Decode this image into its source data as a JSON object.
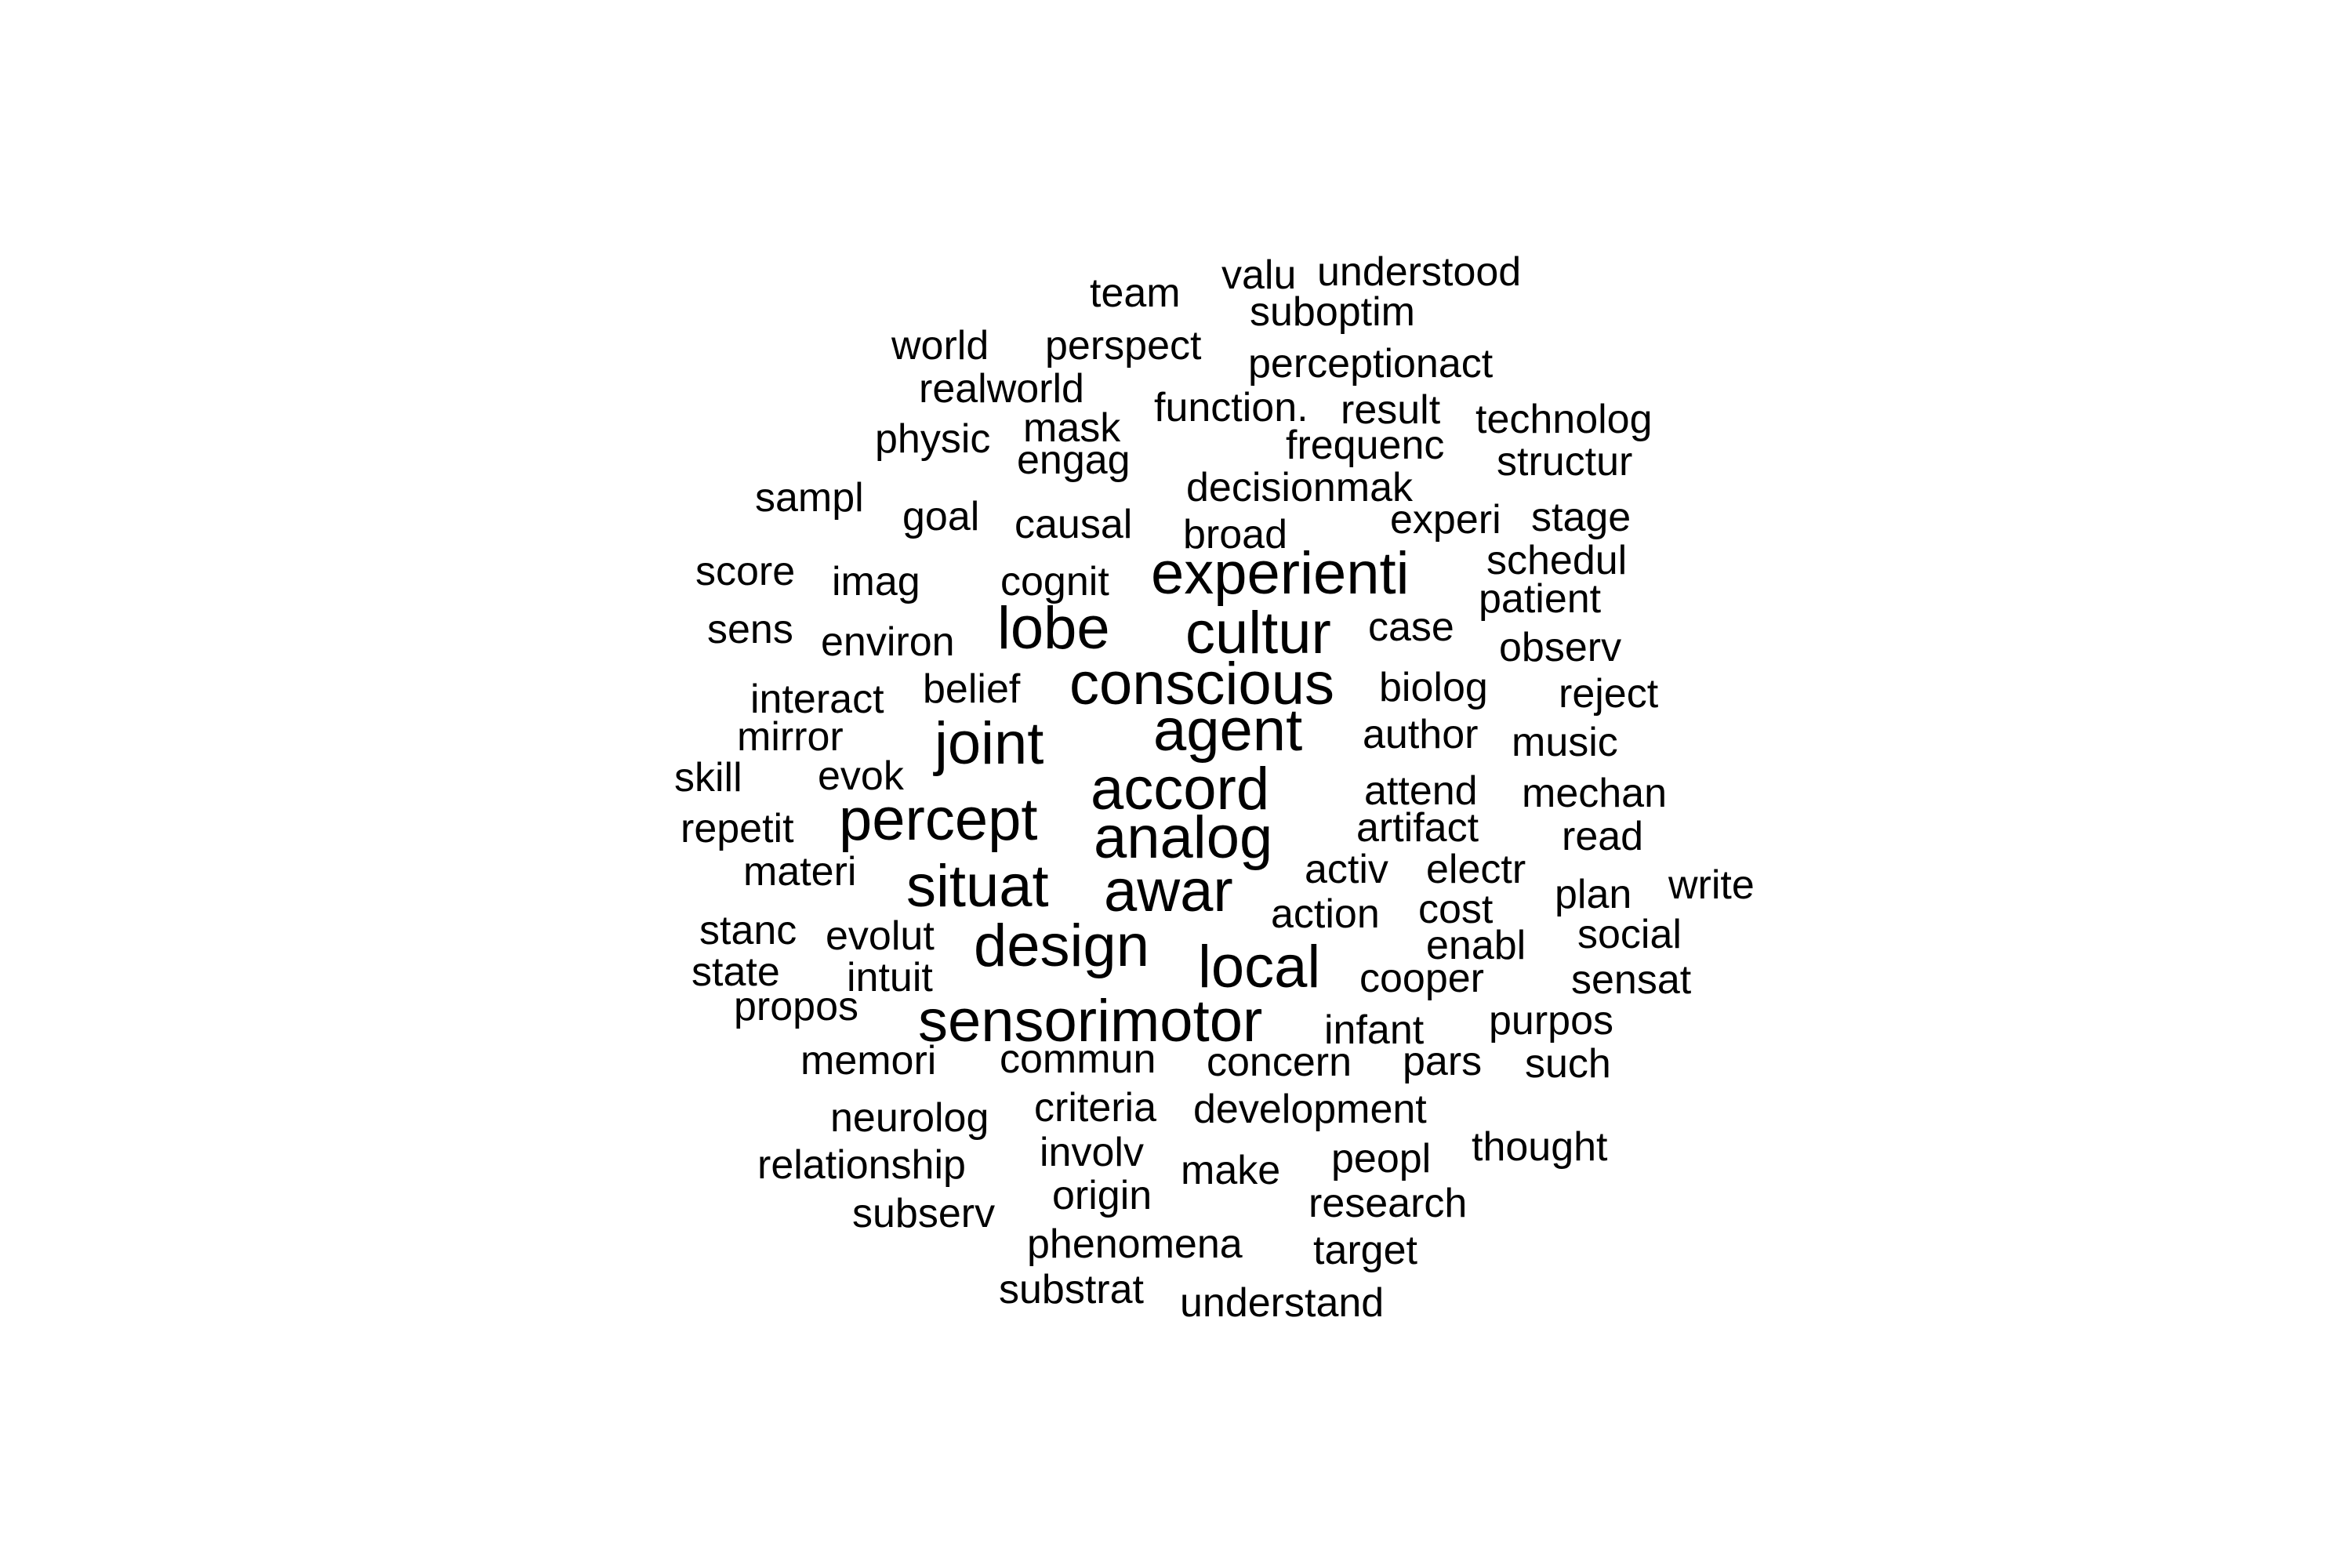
{
  "word_cloud": {
    "text_color": "#000000",
    "background_color": "#ffffff",
    "words": [
      {
        "text": "team",
        "size": 1
      },
      {
        "text": "valu",
        "size": 1
      },
      {
        "text": "understood",
        "size": 1
      },
      {
        "text": "suboptim",
        "size": 1
      },
      {
        "text": "world",
        "size": 1
      },
      {
        "text": "perspect",
        "size": 1
      },
      {
        "text": "perceptionact",
        "size": 1
      },
      {
        "text": "realworld",
        "size": 1
      },
      {
        "text": "function.",
        "size": 1
      },
      {
        "text": "result",
        "size": 1
      },
      {
        "text": "technolog",
        "size": 1
      },
      {
        "text": "physic",
        "size": 1
      },
      {
        "text": "mask",
        "size": 1
      },
      {
        "text": "frequenc",
        "size": 1
      },
      {
        "text": "engag",
        "size": 1
      },
      {
        "text": "structur",
        "size": 1
      },
      {
        "text": "sampl",
        "size": 1
      },
      {
        "text": "decisionmak",
        "size": 1
      },
      {
        "text": "goal",
        "size": 1
      },
      {
        "text": "causal",
        "size": 1
      },
      {
        "text": "experi",
        "size": 1
      },
      {
        "text": "stage",
        "size": 1
      },
      {
        "text": "broad",
        "size": 1
      },
      {
        "text": "score",
        "size": 1
      },
      {
        "text": "imag",
        "size": 1
      },
      {
        "text": "cognit",
        "size": 1
      },
      {
        "text": "experienti",
        "size": 3
      },
      {
        "text": "schedul",
        "size": 1
      },
      {
        "text": "patient",
        "size": 1
      },
      {
        "text": "sens",
        "size": 1
      },
      {
        "text": "environ",
        "size": 1
      },
      {
        "text": "lobe",
        "size": 3
      },
      {
        "text": "cultur",
        "size": 3
      },
      {
        "text": "case",
        "size": 1
      },
      {
        "text": "observ",
        "size": 1
      },
      {
        "text": "interact",
        "size": 1
      },
      {
        "text": "belief",
        "size": 1
      },
      {
        "text": "conscious",
        "size": 3
      },
      {
        "text": "biolog",
        "size": 1
      },
      {
        "text": "reject",
        "size": 1
      },
      {
        "text": "mirror",
        "size": 1
      },
      {
        "text": "joint",
        "size": 3
      },
      {
        "text": "agent",
        "size": 3
      },
      {
        "text": "author",
        "size": 1
      },
      {
        "text": "music",
        "size": 1
      },
      {
        "text": "skill",
        "size": 1
      },
      {
        "text": "evok",
        "size": 1
      },
      {
        "text": "accord",
        "size": 3
      },
      {
        "text": "attend",
        "size": 1
      },
      {
        "text": "mechan",
        "size": 1
      },
      {
        "text": "repetit",
        "size": 1
      },
      {
        "text": "percept",
        "size": 3
      },
      {
        "text": "analog",
        "size": 3
      },
      {
        "text": "artifact",
        "size": 1
      },
      {
        "text": "read",
        "size": 1
      },
      {
        "text": "materi",
        "size": 1
      },
      {
        "text": "situat",
        "size": 3
      },
      {
        "text": "awar",
        "size": 3
      },
      {
        "text": "activ",
        "size": 1
      },
      {
        "text": "electr",
        "size": 1
      },
      {
        "text": "write",
        "size": 1
      },
      {
        "text": "plan",
        "size": 1
      },
      {
        "text": "action",
        "size": 1
      },
      {
        "text": "cost",
        "size": 1
      },
      {
        "text": "stanc",
        "size": 1
      },
      {
        "text": "evolut",
        "size": 1
      },
      {
        "text": "design",
        "size": 3
      },
      {
        "text": "local",
        "size": 3
      },
      {
        "text": "enabl",
        "size": 1
      },
      {
        "text": "social",
        "size": 1
      },
      {
        "text": "state",
        "size": 1
      },
      {
        "text": "intuit",
        "size": 1
      },
      {
        "text": "cooper",
        "size": 1
      },
      {
        "text": "sensat",
        "size": 1
      },
      {
        "text": "propos",
        "size": 1
      },
      {
        "text": "sensorimotor",
        "size": 3
      },
      {
        "text": "infant",
        "size": 1
      },
      {
        "text": "purpos",
        "size": 1
      },
      {
        "text": "memori",
        "size": 1
      },
      {
        "text": "commun",
        "size": 1
      },
      {
        "text": "concern",
        "size": 1
      },
      {
        "text": "pars",
        "size": 1
      },
      {
        "text": "such",
        "size": 1
      },
      {
        "text": "neurolog",
        "size": 1
      },
      {
        "text": "criteria",
        "size": 1
      },
      {
        "text": "development",
        "size": 1
      },
      {
        "text": "relationship",
        "size": 1
      },
      {
        "text": "involv",
        "size": 1
      },
      {
        "text": "make",
        "size": 1
      },
      {
        "text": "peopl",
        "size": 1
      },
      {
        "text": "thought",
        "size": 1
      },
      {
        "text": "origin",
        "size": 1
      },
      {
        "text": "research",
        "size": 1
      },
      {
        "text": "subserv",
        "size": 1
      },
      {
        "text": "phenomena",
        "size": 1
      },
      {
        "text": "target",
        "size": 1
      },
      {
        "text": "substrat",
        "size": 1
      },
      {
        "text": "understand",
        "size": 1
      }
    ]
  }
}
